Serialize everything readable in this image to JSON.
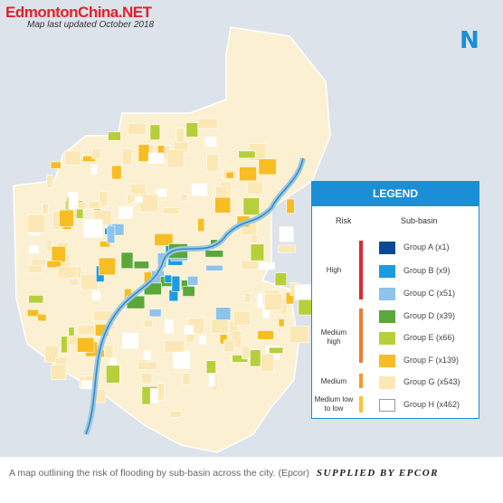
{
  "watermark": "EdmontonChina.NET",
  "updated": "Map last updated October 2018",
  "north": "N",
  "legend": {
    "title": "LEGEND",
    "risk_header": "Risk",
    "basin_header": "Sub-basin",
    "risks": [
      {
        "label": "High",
        "color": "#e0262f"
      },
      {
        "label": "Medium high",
        "color": "#f07c2a"
      },
      {
        "label": "Medium",
        "color": "#f39a2a"
      },
      {
        "label": "Medium low to low",
        "color": "#f7c431"
      }
    ],
    "groups": [
      {
        "label": "Group A (x1)",
        "color": "#0a4a95"
      },
      {
        "label": "Group B (x9)",
        "color": "#1d9be0"
      },
      {
        "label": "Group C (x51)",
        "color": "#8ec3ea"
      },
      {
        "label": "Group D (x39)",
        "color": "#5aa73a"
      },
      {
        "label": "Group E (x66)",
        "color": "#b7cf3a"
      },
      {
        "label": "Group F (x139)",
        "color": "#f8bd22"
      },
      {
        "label": "Group G (x543)",
        "color": "#fbe8b5"
      },
      {
        "label": "Group H (x462)",
        "color": "#ffffff"
      }
    ]
  },
  "caption": {
    "text": "A map outlining the risk of flooding by sub-basin across the city. (Epcor)",
    "credit": "SUPPLIED BY EPCOR"
  }
}
